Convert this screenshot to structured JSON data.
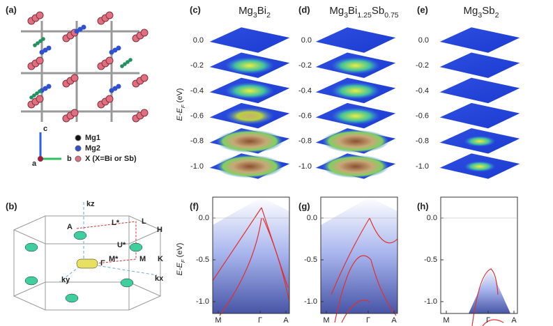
{
  "panels": [
    {
      "label": "(a)",
      "legend": [
        "Mg1",
        "Mg2",
        "X (X=Bi or Sb)"
      ],
      "axes": [
        "c",
        "a",
        "b"
      ]
    },
    {
      "label": "(b)",
      "points": [
        "kz",
        "A",
        "L*",
        "L",
        "H",
        "U*",
        "M*",
        "M",
        "K",
        "Γ",
        "ky",
        "kx"
      ]
    },
    {
      "label": "(c)",
      "title": [
        "Mg",
        "3",
        "Bi",
        "2"
      ],
      "ylabel": [
        "E-E",
        "F",
        " (eV)"
      ],
      "yticks": [
        "0.0",
        "-0.2",
        "-0.4",
        "-0.6",
        "-0.8",
        "-1.0"
      ]
    },
    {
      "label": "(d)",
      "title": [
        "Mg",
        "3",
        "Bi",
        "1.25",
        "Sb",
        "0.75"
      ],
      "yticks": [
        "0.0",
        "-0.2",
        "-0.4",
        "-0.6",
        "-0.8",
        "-1.0"
      ]
    },
    {
      "label": "(e)",
      "title": [
        "Mg",
        "3",
        "Sb",
        "2"
      ],
      "yticks": [
        "0.0",
        "-0.2",
        "-0.4",
        "-0.6",
        "-0.8",
        "-1.0"
      ]
    },
    {
      "label": "(f)",
      "ylabel": [
        "E-E",
        "F",
        " (eV)"
      ],
      "yticks": [
        "0.0",
        "-0.5",
        "-1.0"
      ],
      "xticks": [
        "M",
        "Γ",
        "A"
      ]
    },
    {
      "label": "(g)",
      "yticks": [
        "0.0",
        "-0.5",
        "-1.0"
      ],
      "xticks": [
        "M",
        "Γ",
        "A"
      ]
    },
    {
      "label": "(h)",
      "yticks": [
        "0.0",
        "-0.5",
        "-1.0"
      ],
      "xticks": [
        "M",
        "Γ",
        "A"
      ]
    }
  ]
}
